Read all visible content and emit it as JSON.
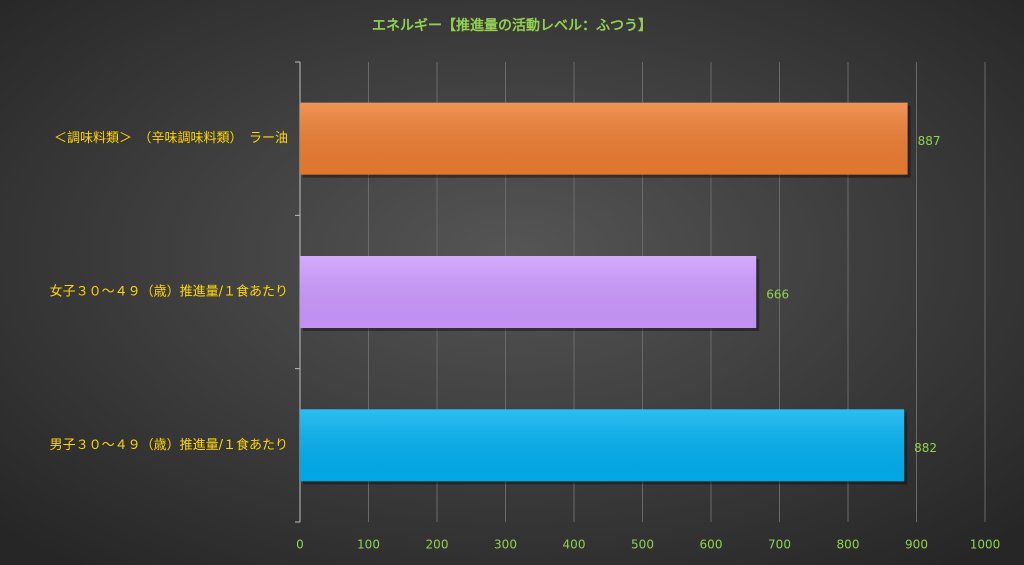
{
  "chart_data": {
    "type": "bar",
    "orientation": "horizontal",
    "title": "エネルギー【推進量の活動レベル：ふつう】",
    "categories": [
      "＜調味料類＞　（辛味調味料類）　ラー油",
      "女子３０～４９（歳）推進量/１食あたり",
      "男子３０～４９（歳）推進量/１食あたり"
    ],
    "values": [
      887,
      666,
      882
    ],
    "colors": [
      "#ed7d31",
      "#cc99ff",
      "#00b0f0"
    ],
    "xlim": [
      0,
      1000
    ],
    "xticks": [
      0,
      100,
      200,
      300,
      400,
      500,
      600,
      700,
      800,
      900,
      1000
    ],
    "grid": true
  }
}
